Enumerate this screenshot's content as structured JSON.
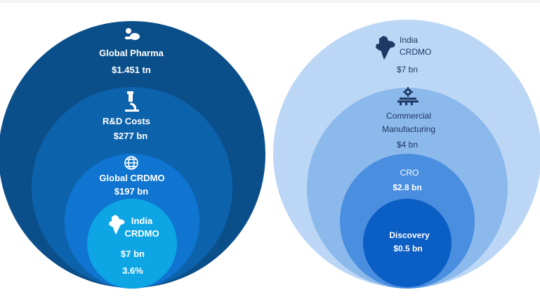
{
  "left": {
    "global_pharma": {
      "name": "Global Pharma",
      "value": "$1.451 tn",
      "icon": "pills-icon"
    },
    "rd_costs": {
      "name": "R&D Costs",
      "value": "$277 bn",
      "icon": "microscope-icon"
    },
    "global_crdmo": {
      "name": "Global CRDMO",
      "value": "$197 bn",
      "icon": "globe-icon"
    },
    "india_crdmo": {
      "name_line1": "India",
      "name_line2": "CRDMO",
      "value": "$7 bn",
      "share": "3.6%",
      "icon": "india-map-icon"
    }
  },
  "right": {
    "india_crdmo": {
      "name_line1": "India",
      "name_line2": "CRDMO",
      "value": "$7 bn",
      "icon": "india-map-icon"
    },
    "commercial_manufacturing": {
      "name_line1": "Commercial",
      "name_line2": "Manufacturing",
      "value": "$4 bn",
      "icon": "factory-gear-icon"
    },
    "cro": {
      "name": "CRO",
      "value": "$2.8 bn"
    },
    "discovery": {
      "name": "Discovery",
      "value": "$0.5 bn"
    }
  },
  "colors": {
    "global_pharma": "#0b4f8a",
    "rd_costs": "#0d62ac",
    "global_crdmo": "#0f75d1",
    "india_crdmo_left": "#0ea5e4",
    "india_crdmo_right": "#bcd7f6",
    "commercial_manufacturing": "#8cb9ec",
    "cro": "#4a8ee0",
    "discovery": "#0b5ec4"
  }
}
